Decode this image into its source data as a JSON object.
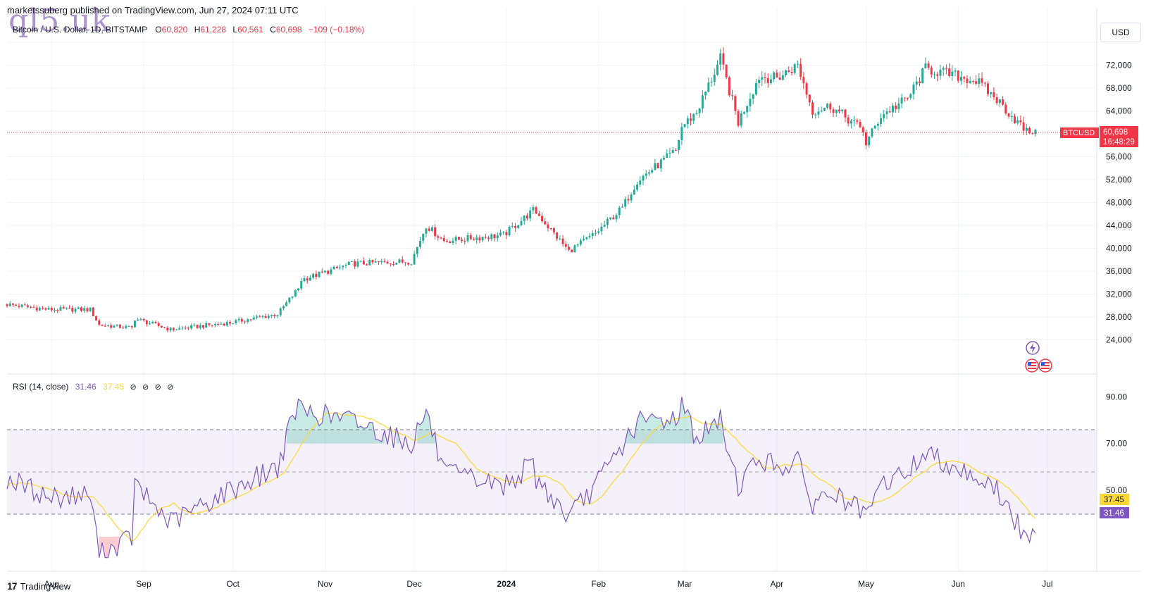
{
  "header": {
    "publisher": "marketssuberg published on TradingView.com, Jun 27, 2024 07:11 UTC",
    "watermark": "ql5.uk"
  },
  "legend": {
    "symbol": "Bitcoin / U.S. Dollar, 1D, BITSTAMP",
    "o_label": "O",
    "o_value": "60,820",
    "h_label": "H",
    "h_value": "61,228",
    "l_label": "L",
    "l_value": "60,561",
    "c_label": "C",
    "c_value": "60,698",
    "change": "−109 (−0.18%)"
  },
  "currency_button": "USD",
  "price_tag": {
    "symbol": "BTCUSD",
    "price": "60,698",
    "countdown": "16:48:29"
  },
  "rsi_legend": {
    "name": "RSI (14, close)",
    "rsi": "31.46",
    "ma": "37.45",
    "eye": "⊘"
  },
  "rsi_tags": {
    "ma": "37.45",
    "rsi": "31.46"
  },
  "footer": {
    "brand": "TradingView",
    "logo_glyph": "17"
  },
  "colors": {
    "up": "#22ab94",
    "down": "#f23645",
    "rsi": "#7e57c2",
    "rsi_ma": "#fdd835",
    "band": "#7e57c2"
  },
  "chart_data": [
    {
      "type": "candlestick",
      "title": "Bitcoin / U.S. Dollar, 1D, BITSTAMP",
      "x_tick_labels": [
        "Aug",
        "Sep",
        "Oct",
        "Nov",
        "Dec",
        "2024",
        "Feb",
        "Mar",
        "Apr",
        "May",
        "Jun",
        "Jul"
      ],
      "y_tick_labels": [
        "24,000",
        "28,000",
        "32,000",
        "36,000",
        "40,000",
        "44,000",
        "48,000",
        "52,000",
        "56,000",
        "64,000",
        "68,000",
        "72,000"
      ],
      "ylim": [
        20000,
        76000
      ],
      "last_price": 60698,
      "series": [
        {
          "name": "BTCUSD",
          "keypoints": [
            [
              "2023-07-17",
              30200
            ],
            [
              "2023-07-31",
              29300
            ],
            [
              "2023-08-14",
              29300
            ],
            [
              "2023-08-17",
              26600
            ],
            [
              "2023-08-28",
              26100
            ],
            [
              "2023-08-29",
              27700
            ],
            [
              "2023-09-10",
              25800
            ],
            [
              "2023-09-30",
              27000
            ],
            [
              "2023-10-16",
              28500
            ],
            [
              "2023-10-23",
              33000
            ],
            [
              "2023-10-24",
              34500
            ],
            [
              "2023-11-10",
              37300
            ],
            [
              "2023-11-30",
              37700
            ],
            [
              "2023-12-05",
              44000
            ],
            [
              "2023-12-11",
              41300
            ],
            [
              "2023-12-31",
              42300
            ],
            [
              "2024-01-10",
              46600
            ],
            [
              "2024-01-11",
              46300
            ],
            [
              "2024-01-22",
              39500
            ],
            [
              "2024-01-31",
              42600
            ],
            [
              "2024-02-09",
              47100
            ],
            [
              "2024-02-14",
              51800
            ],
            [
              "2024-02-27",
              57000
            ],
            [
              "2024-02-29",
              61200
            ],
            [
              "2024-03-05",
              63800
            ],
            [
              "2024-03-13",
              73100
            ],
            [
              "2024-03-19",
              62000
            ],
            [
              "2024-03-26",
              70000
            ],
            [
              "2024-04-01",
              69700
            ],
            [
              "2024-04-08",
              72000
            ],
            [
              "2024-04-13",
              64000
            ],
            [
              "2024-04-19",
              64900
            ],
            [
              "2024-04-30",
              60600
            ],
            [
              "2024-05-01",
              58300
            ],
            [
              "2024-05-06",
              63200
            ],
            [
              "2024-05-15",
              66200
            ],
            [
              "2024-05-21",
              71400
            ],
            [
              "2024-06-07",
              69300
            ],
            [
              "2024-06-14",
              66000
            ],
            [
              "2024-06-24",
              60300
            ],
            [
              "2024-06-27",
              60698
            ]
          ]
        }
      ]
    },
    {
      "type": "line",
      "title": "RSI (14, close)",
      "y_tick_labels": [
        "50.00",
        "70.00",
        "90.00"
      ],
      "ylim": [
        20,
        95
      ],
      "bands": {
        "upper": 70,
        "middle": 50,
        "lower": 30
      },
      "series": [
        {
          "name": "RSI",
          "last_value": 31.46,
          "keypoints": [
            [
              "2023-07-17",
              55
            ],
            [
              "2023-07-31",
              47
            ],
            [
              "2023-08-14",
              48
            ],
            [
              "2023-08-17",
              22
            ],
            [
              "2023-08-28",
              30
            ],
            [
              "2023-08-29",
              52
            ],
            [
              "2023-09-10",
              36
            ],
            [
              "2023-09-30",
              50
            ],
            [
              "2023-10-16",
              60
            ],
            [
              "2023-10-23",
              88
            ],
            [
              "2023-10-24",
              84
            ],
            [
              "2023-11-10",
              80
            ],
            [
              "2023-11-30",
              70
            ],
            [
              "2023-12-05",
              84
            ],
            [
              "2023-12-11",
              57
            ],
            [
              "2023-12-31",
              52
            ],
            [
              "2024-01-10",
              61
            ],
            [
              "2024-01-11",
              55
            ],
            [
              "2024-01-22",
              38
            ],
            [
              "2024-01-31",
              52
            ],
            [
              "2024-02-09",
              69
            ],
            [
              "2024-02-14",
              79
            ],
            [
              "2024-02-27",
              81
            ],
            [
              "2024-02-29",
              88
            ],
            [
              "2024-03-05",
              72
            ],
            [
              "2024-03-13",
              80
            ],
            [
              "2024-03-19",
              52
            ],
            [
              "2024-03-26",
              64
            ],
            [
              "2024-04-01",
              60
            ],
            [
              "2024-04-08",
              62
            ],
            [
              "2024-04-13",
              44
            ],
            [
              "2024-04-19",
              49
            ],
            [
              "2024-04-30",
              40
            ],
            [
              "2024-05-01",
              37
            ],
            [
              "2024-05-06",
              52
            ],
            [
              "2024-05-15",
              58
            ],
            [
              "2024-05-21",
              66
            ],
            [
              "2024-06-07",
              56
            ],
            [
              "2024-06-14",
              50
            ],
            [
              "2024-06-24",
              28
            ],
            [
              "2024-06-27",
              31.46
            ]
          ]
        },
        {
          "name": "RSI-based MA",
          "last_value": 37.45,
          "smoothing": 14
        }
      ]
    }
  ]
}
